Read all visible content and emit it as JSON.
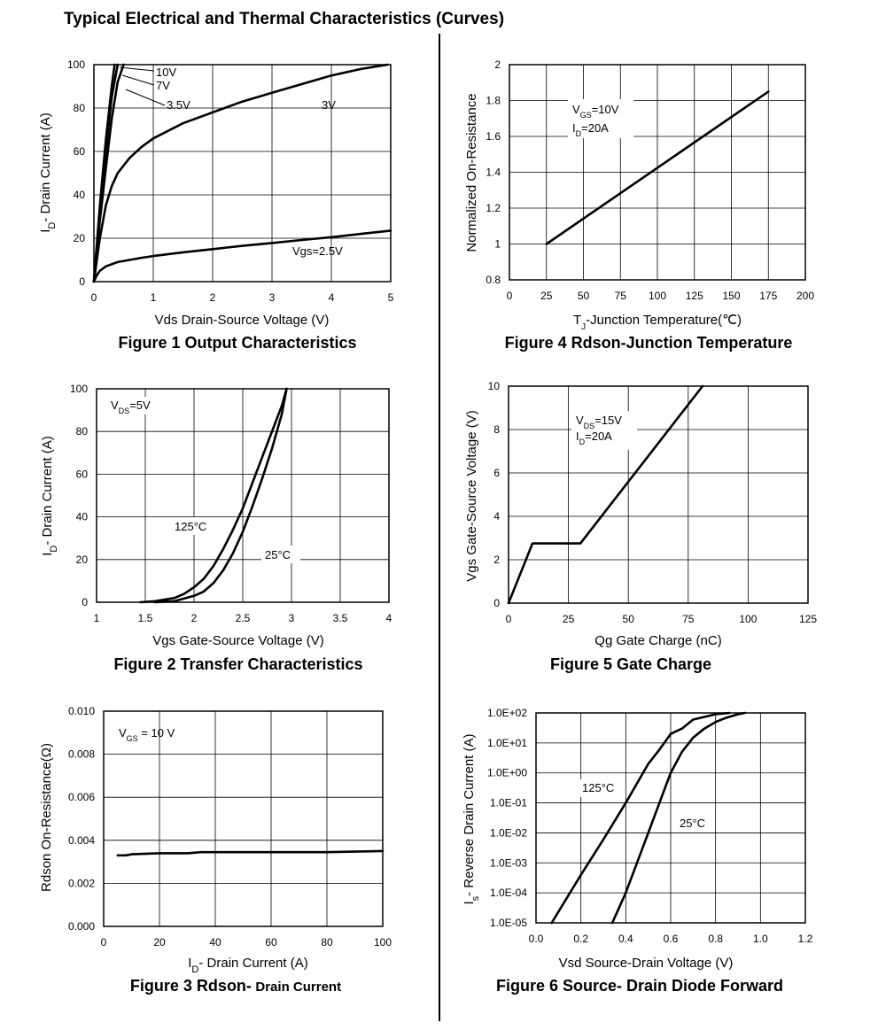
{
  "page": {
    "title": "Typical Electrical and Thermal Characteristics (Curves)"
  },
  "chart_data": [
    {
      "id": "fig1",
      "type": "line",
      "caption": "Figure 1 Output Characteristics",
      "xlabel": "Vds Drain-Source Voltage (V)",
      "ylabel": "ID- Drain Current (A)",
      "xlim": [
        0,
        5
      ],
      "ylim": [
        0,
        100
      ],
      "xticks": [
        0,
        1,
        2,
        3,
        4,
        5
      ],
      "xtick_labels": [
        "0",
        "1",
        "2",
        "3",
        "4",
        "5"
      ],
      "yticks": [
        0,
        20,
        40,
        60,
        80,
        100
      ],
      "ytick_labels": [
        "0",
        "20",
        "40",
        "60",
        "80",
        "100"
      ],
      "xscale": "linear",
      "yscale": "linear",
      "grid": true,
      "series": [
        {
          "name": "10V",
          "x": [
            0,
            0.1,
            0.2,
            0.3,
            0.35
          ],
          "y": [
            0,
            35,
            65,
            90,
            100
          ]
        },
        {
          "name": "7V",
          "x": [
            0,
            0.1,
            0.2,
            0.3,
            0.4
          ],
          "y": [
            0,
            32,
            60,
            85,
            100
          ]
        },
        {
          "name": "3.5V",
          "x": [
            0,
            0.1,
            0.2,
            0.3,
            0.4,
            0.5
          ],
          "y": [
            0,
            28,
            52,
            75,
            92,
            100
          ]
        },
        {
          "name": "3V",
          "x": [
            0,
            0.05,
            0.1,
            0.2,
            0.3,
            0.4,
            0.6,
            0.8,
            1.0,
            1.5,
            2.0,
            2.5,
            3.0,
            3.5,
            4.0,
            4.5,
            4.95
          ],
          "y": [
            0,
            10,
            20,
            35,
            44,
            50,
            57,
            62,
            66,
            73,
            78,
            83,
            87,
            91,
            95,
            98,
            100
          ]
        },
        {
          "name": "Vgs=2.5V",
          "x": [
            0,
            0.05,
            0.1,
            0.2,
            0.4,
            0.6,
            0.8,
            1.0,
            1.5,
            2.0,
            2.5,
            3.0,
            3.5,
            4.0,
            4.5,
            5.0
          ],
          "y": [
            0,
            3,
            5,
            7,
            9,
            10,
            11,
            11.8,
            13.5,
            15,
            16.5,
            17.8,
            19.2,
            20.5,
            22,
            23.5
          ]
        }
      ],
      "annotations": [
        "10V",
        "7V",
        "3.5V",
        "3V",
        "Vgs=2.5V"
      ]
    },
    {
      "id": "fig2",
      "type": "line",
      "caption": "Figure 2 Transfer Characteristics",
      "xlabel": "Vgs Gate-Source Voltage (V)",
      "ylabel": "ID- Drain Current (A)",
      "xlim": [
        1,
        4
      ],
      "ylim": [
        0,
        100
      ],
      "xticks": [
        1,
        1.5,
        2,
        2.5,
        3,
        3.5,
        4
      ],
      "xtick_labels": [
        "1",
        "1.5",
        "2",
        "2.5",
        "3",
        "3.5",
        "4"
      ],
      "yticks": [
        0,
        20,
        40,
        60,
        80,
        100
      ],
      "ytick_labels": [
        "0",
        "20",
        "40",
        "60",
        "80",
        "100"
      ],
      "xscale": "linear",
      "yscale": "linear",
      "grid": true,
      "series": [
        {
          "name": "125°C",
          "x": [
            1.45,
            1.6,
            1.8,
            1.9,
            2.0,
            2.1,
            2.2,
            2.3,
            2.4,
            2.5,
            2.6,
            2.7,
            2.8,
            2.9,
            2.95
          ],
          "y": [
            0,
            0.5,
            2,
            4,
            7,
            11,
            17,
            25,
            34,
            44,
            56,
            68,
            80,
            92,
            100
          ]
        },
        {
          "name": "25°C",
          "x": [
            1.6,
            1.8,
            2.0,
            2.1,
            2.2,
            2.3,
            2.4,
            2.5,
            2.6,
            2.7,
            2.8,
            2.9,
            2.95
          ],
          "y": [
            0,
            0.5,
            3,
            5,
            9,
            15,
            23,
            33,
            45,
            58,
            72,
            88,
            100
          ]
        }
      ],
      "annotations": [
        "VDS=5V",
        "125°C",
        "25°C"
      ]
    },
    {
      "id": "fig3",
      "type": "line",
      "caption": "Figure 3 Rdson-",
      "caption_sub": "Drain Current",
      "xlabel": "ID- Drain Current (A)",
      "ylabel": "Rdson On-Resistance(Ω)",
      "xlim": [
        0,
        100
      ],
      "ylim": [
        0,
        0.01
      ],
      "xticks": [
        0,
        20,
        40,
        60,
        80,
        100
      ],
      "xtick_labels": [
        "0",
        "20",
        "40",
        "60",
        "80",
        "100"
      ],
      "yticks": [
        0,
        0.002,
        0.004,
        0.006,
        0.008,
        0.01
      ],
      "ytick_labels": [
        "0.000",
        "0.002",
        "0.004",
        "0.006",
        "0.008",
        "0.010"
      ],
      "xscale": "linear",
      "yscale": "linear",
      "grid": true,
      "series": [
        {
          "name": "",
          "x": [
            5,
            8,
            10,
            20,
            30,
            35,
            40,
            60,
            80,
            100
          ],
          "y": [
            0.0033,
            0.0033,
            0.00335,
            0.0034,
            0.0034,
            0.00345,
            0.00345,
            0.00345,
            0.00345,
            0.0035
          ]
        }
      ],
      "annotations": [
        "VGS = 10 V"
      ]
    },
    {
      "id": "fig4",
      "type": "line",
      "caption": "Figure 4 Rdson-Junction Temperature",
      "xlabel": "TJ-Junction Temperature(℃)",
      "ylabel": "Normalized On-Resistance",
      "xlim": [
        0,
        200
      ],
      "ylim": [
        0.8,
        2
      ],
      "xticks": [
        0,
        25,
        50,
        75,
        100,
        125,
        150,
        175,
        200
      ],
      "xtick_labels": [
        "0",
        "25",
        "50",
        "75",
        "100",
        "125",
        "150",
        "175",
        "200"
      ],
      "yticks": [
        0.8,
        1,
        1.2,
        1.4,
        1.6,
        1.8,
        2
      ],
      "ytick_labels": [
        "0.8",
        "1",
        "1.2",
        "1.4",
        "1.6",
        "1.8",
        "2"
      ],
      "xscale": "linear",
      "yscale": "linear",
      "grid": true,
      "series": [
        {
          "name": "",
          "x": [
            25,
            175
          ],
          "y": [
            1.0,
            1.85
          ]
        }
      ],
      "annotations": [
        "VGS=10V",
        "ID=20A"
      ]
    },
    {
      "id": "fig5",
      "type": "line",
      "caption": "Figure 5 Gate Charge",
      "xlabel": "Qg Gate Charge (nC)",
      "ylabel": "Vgs Gate-Source Voltage (V)",
      "xlim": [
        0,
        125
      ],
      "ylim": [
        0,
        10
      ],
      "xticks": [
        0,
        25,
        50,
        75,
        100,
        125
      ],
      "xtick_labels": [
        "0",
        "25",
        "50",
        "75",
        "100",
        "125"
      ],
      "yticks": [
        0,
        2,
        4,
        6,
        8,
        10
      ],
      "ytick_labels": [
        "0",
        "2",
        "4",
        "6",
        "8",
        "10"
      ],
      "xscale": "linear",
      "yscale": "linear",
      "grid": true,
      "series": [
        {
          "name": "",
          "x": [
            0,
            10,
            30,
            81
          ],
          "y": [
            0,
            2.75,
            2.75,
            10
          ]
        }
      ],
      "annotations": [
        "VDS=15V",
        "ID=20A"
      ]
    },
    {
      "id": "fig6",
      "type": "line",
      "caption": "Figure 6 Source- Drain Diode Forward",
      "xlabel": "Vsd Source-Drain Voltage (V)",
      "ylabel": "Is- Reverse Drain Current (A)",
      "xlim": [
        0,
        1.2
      ],
      "ylim": [
        1e-05,
        100
      ],
      "xticks": [
        0,
        0.2,
        0.4,
        0.6,
        0.8,
        1.0,
        1.2
      ],
      "xtick_labels": [
        "0.0",
        "0.2",
        "0.4",
        "0.6",
        "0.8",
        "1.0",
        "1.2"
      ],
      "yticks": [
        1e-05,
        0.0001,
        0.001,
        0.01,
        0.1,
        1,
        10,
        100
      ],
      "ytick_labels": [
        "1.0E-05",
        "1.0E-04",
        "1.0E-03",
        "1.0E-02",
        "1.0E-01",
        "1.0E+00",
        "1.0E+01",
        "1.0E+02"
      ],
      "xscale": "linear",
      "yscale": "log",
      "grid": true,
      "series": [
        {
          "name": "125°C",
          "x": [
            0.07,
            0.2,
            0.3,
            0.4,
            0.5,
            0.55,
            0.6,
            0.65,
            0.7,
            0.8,
            0.86
          ],
          "y": [
            1e-05,
            0.0004,
            0.006,
            0.1,
            2,
            6,
            20,
            30,
            60,
            90,
            100
          ]
        },
        {
          "name": "25°C",
          "x": [
            0.34,
            0.4,
            0.5,
            0.55,
            0.6,
            0.65,
            0.7,
            0.75,
            0.8,
            0.85,
            0.9,
            0.93
          ],
          "y": [
            1e-05,
            0.0001,
            0.01,
            0.1,
            1,
            5,
            15,
            30,
            50,
            70,
            90,
            100
          ]
        }
      ],
      "annotations": [
        "125°C",
        "25°C"
      ]
    }
  ]
}
